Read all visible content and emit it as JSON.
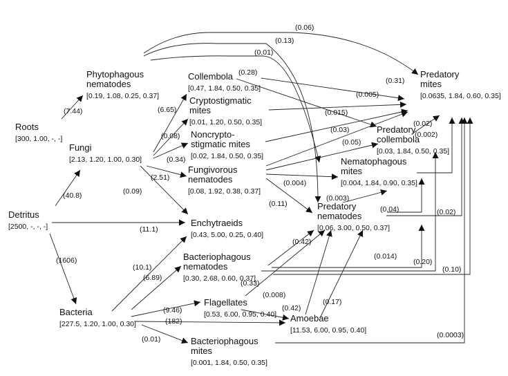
{
  "nodes": {
    "roots": {
      "name": [
        "Roots"
      ],
      "params": "[300, 1.00, -, -]"
    },
    "detritus": {
      "name": [
        "Detritus"
      ],
      "params": "[2500, -, -, -]"
    },
    "fungi": {
      "name": [
        "Fungi"
      ],
      "params": "[2.13, 1.20, 1.00, 0.30]"
    },
    "bacteria": {
      "name": [
        "Bacteria"
      ],
      "params": "[227.5, 1.20, 1.00, 0.30]"
    },
    "phytophagous_nematodes": {
      "name": [
        "Phytophagous",
        "nematodes"
      ],
      "params": "[0.19, 1.08, 0.25, 0.37]"
    },
    "collembola": {
      "name": [
        "Collembola"
      ],
      "params": "[0.47, 1.84, 0.50, 0.35]"
    },
    "cryptostigmatic_mites": {
      "name": [
        "Cryptostigmatic",
        "mites"
      ],
      "params": "[0.01, 1.20, 0.50, 0.35]"
    },
    "noncryptostigmatic_mites": {
      "name": [
        "Noncrypto-",
        "stigmatic mites"
      ],
      "params": "[0.02, 1.84, 0.50, 0.35]"
    },
    "fungivorous_nematodes": {
      "name": [
        "Fungivorous",
        "nematodes"
      ],
      "params": "[0.08, 1.92, 0.38, 0.37]"
    },
    "enchytraeids": {
      "name": [
        "Enchytraeids"
      ],
      "params": "[0.43, 5.00, 0.25, 0.40]"
    },
    "bacteriophagous_nematodes": {
      "name": [
        "Bacteriophagous",
        "nematodes"
      ],
      "params": "[0.30, 2.68, 0.60, 0.37]"
    },
    "flagellates": {
      "name": [
        "Flagellates"
      ],
      "params": "[0.53,  6.00, 0.95, 0.40]"
    },
    "amoebae": {
      "name": [
        "Amoebae"
      ],
      "params": "[11.53, 6.00, 0.95, 0.40]"
    },
    "bacteriophagous_mites": {
      "name": [
        "Bacteriophagous",
        "mites"
      ],
      "params": "[0.001, 1.84, 0.50, 0.35]"
    },
    "predatory_mites": {
      "name": [
        "Predatory",
        "mites"
      ],
      "params": "[0.0635, 1.84, 0.60, 0.35]"
    },
    "predatory_collembola": {
      "name": [
        "Predatory",
        "collembola"
      ],
      "params": "[0.03, 1.84, 0.50, 0.35]"
    },
    "nematophagous_mites": {
      "name": [
        "Nematophagous",
        "mites"
      ],
      "params": "[0.004, 1.84, 0.90, 0.35]"
    },
    "predatory_nematodes": {
      "name": [
        "Predatory",
        "nematodes"
      ],
      "params": "[0.06, 3.00, 0.50, 0.37]"
    }
  },
  "flows": [
    {
      "from": "roots",
      "to": "phytophagous_nematodes",
      "label": "(7.44)"
    },
    {
      "from": "detritus",
      "to": "fungi",
      "label": "(40.8)"
    },
    {
      "from": "detritus",
      "to": "enchytraeids",
      "label": "(11.1)"
    },
    {
      "from": "detritus",
      "to": "bacteria",
      "label": "(1606)"
    },
    {
      "from": "fungi",
      "to": "collembola",
      "label": "(6.65)"
    },
    {
      "from": "fungi",
      "to": "cryptostigmatic_mites",
      "label": "(0.08)"
    },
    {
      "from": "fungi",
      "to": "noncryptostigmatic_mites",
      "label": "(0.34)"
    },
    {
      "from": "fungi",
      "to": "fungivorous_nematodes",
      "label": "(2.51)"
    },
    {
      "from": "fungi",
      "to": "enchytraeids",
      "label": "(0.09)"
    },
    {
      "from": "bacteria",
      "to": "enchytraeids",
      "label": "(10.1)"
    },
    {
      "from": "bacteria",
      "to": "bacteriophagous_nematodes",
      "label": "(6.89)"
    },
    {
      "from": "bacteria",
      "to": "flagellates",
      "label": "(9.46)"
    },
    {
      "from": "bacteria",
      "to": "amoebae",
      "label": "(182)"
    },
    {
      "from": "bacteria",
      "to": "bacteriophagous_mites",
      "label": "(0.01)"
    },
    {
      "from": "phytophagous_nematodes",
      "to": "predatory_mites",
      "label": "(0.06)"
    },
    {
      "from": "phytophagous_nematodes",
      "to": "predatory_nematodes",
      "label": "(0.13)"
    },
    {
      "from": "phytophagous_nematodes",
      "to": "nematophagous_mites",
      "label": "(0.01)"
    },
    {
      "from": "collembola",
      "to": "predatory_collembola",
      "label": "(0.28)"
    },
    {
      "from": "collembola",
      "to": "predatory_mites",
      "label": "(0.31)"
    },
    {
      "from": "cryptostigmatic_mites",
      "to": "predatory_mites",
      "label": "(0.005)"
    },
    {
      "from": "noncryptostigmatic_mites",
      "to": "predatory_mites",
      "label": "(0.015)"
    },
    {
      "from": "fungivorous_nematodes",
      "to": "predatory_mites",
      "label": "(0.03)"
    },
    {
      "from": "fungivorous_nematodes",
      "to": "predatory_collembola",
      "label": "(0.05)"
    },
    {
      "from": "fungivorous_nematodes",
      "to": "nematophagous_mites",
      "label": "(0.004)"
    },
    {
      "from": "fungivorous_nematodes",
      "to": "predatory_nematodes",
      "label": "(0.11)"
    },
    {
      "from": "predatory_collembola",
      "to": "predatory_mites",
      "label": "(0.02)"
    },
    {
      "from": "nematophagous_mites",
      "to": "predatory_mites",
      "label": "(0.002)"
    },
    {
      "from": "predatory_nematodes",
      "to": "nematophagous_mites",
      "label": "(0.003)"
    },
    {
      "from": "predatory_nematodes",
      "to": "predatory_collembola",
      "label": "(0.04)"
    },
    {
      "from": "predatory_nematodes",
      "to": "predatory_mites",
      "label": "(0.02)"
    },
    {
      "from": "bacteriophagous_nematodes",
      "to": "predatory_nematodes",
      "label": "(0.42)"
    },
    {
      "from": "bacteriophagous_nematodes",
      "to": "nematophagous_mites",
      "label": "(0.014)"
    },
    {
      "from": "bacteriophagous_nematodes",
      "to": "predatory_collembola",
      "label": "(0.20)"
    },
    {
      "from": "bacteriophagous_nematodes",
      "to": "predatory_mites",
      "label": "(0.10)"
    },
    {
      "from": "flagellates",
      "to": "predatory_nematodes",
      "label": "(0.33)"
    },
    {
      "from": "flagellates",
      "to": "amoebae",
      "label": "(0.008)"
    },
    {
      "from": "amoebae",
      "to": "predatory_nematodes",
      "label": "(0.42)"
    },
    {
      "from": "amoebae",
      "to": "predatory_nematodes",
      "label": "(0.17)"
    },
    {
      "from": "bacteriophagous_mites",
      "to": "predatory_mites",
      "label": "(0.0003)"
    }
  ]
}
